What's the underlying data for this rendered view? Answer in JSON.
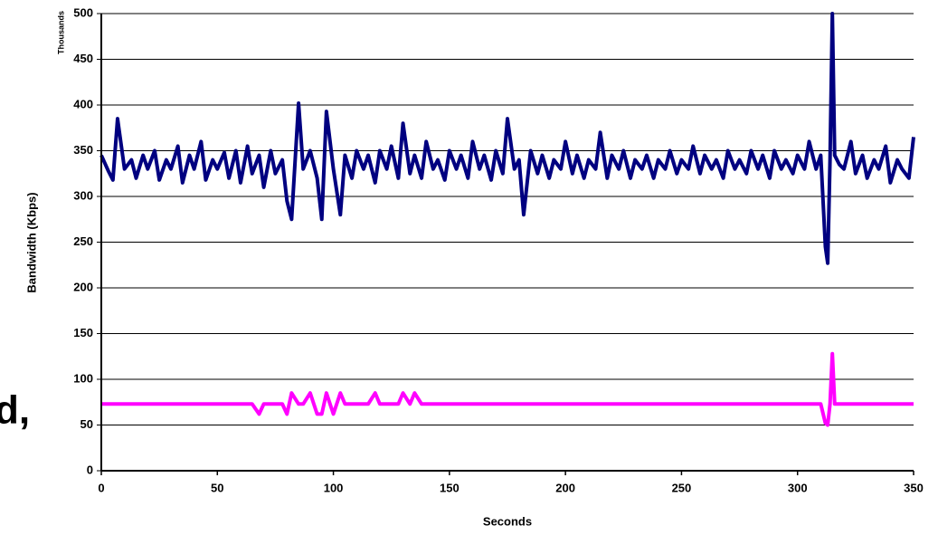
{
  "chart_data": {
    "type": "line",
    "background_text": "d,",
    "xlabel": "Seconds",
    "ylabel": "Bandwidth (Kbps)",
    "y_units_label": "Thousands",
    "xlim": [
      0,
      350
    ],
    "xticks": [
      0,
      50,
      100,
      150,
      200,
      250,
      300,
      350
    ],
    "ylim": [
      0,
      500
    ],
    "yticks": [
      0,
      50,
      100,
      150,
      200,
      250,
      300,
      350,
      400,
      450,
      500
    ],
    "grid": true,
    "x": [
      0,
      3,
      5,
      7,
      10,
      13,
      15,
      18,
      20,
      23,
      25,
      28,
      30,
      33,
      35,
      38,
      40,
      43,
      45,
      48,
      50,
      53,
      55,
      58,
      60,
      63,
      65,
      68,
      70,
      73,
      75,
      78,
      80,
      82,
      85,
      87,
      90,
      93,
      95,
      97,
      100,
      103,
      105,
      108,
      110,
      113,
      115,
      118,
      120,
      123,
      125,
      128,
      130,
      133,
      135,
      138,
      140,
      143,
      145,
      148,
      150,
      153,
      155,
      158,
      160,
      163,
      165,
      168,
      170,
      173,
      175,
      178,
      180,
      182,
      185,
      188,
      190,
      193,
      195,
      198,
      200,
      203,
      205,
      208,
      210,
      213,
      215,
      218,
      220,
      223,
      225,
      228,
      230,
      233,
      235,
      238,
      240,
      243,
      245,
      248,
      250,
      253,
      255,
      258,
      260,
      263,
      265,
      268,
      270,
      273,
      275,
      278,
      280,
      283,
      285,
      288,
      290,
      293,
      295,
      298,
      300,
      303,
      305,
      308,
      310,
      312,
      313,
      314,
      315,
      316,
      318,
      320,
      323,
      325,
      328,
      330,
      333,
      335,
      338,
      340,
      343,
      345,
      348,
      350
    ],
    "series": [
      {
        "color": "#000080",
        "values": [
          345,
          328,
          318,
          385,
          330,
          340,
          320,
          345,
          330,
          350,
          318,
          340,
          330,
          355,
          315,
          345,
          330,
          360,
          318,
          340,
          330,
          348,
          320,
          350,
          315,
          355,
          325,
          345,
          310,
          350,
          325,
          340,
          295,
          275,
          402,
          330,
          350,
          320,
          275,
          393,
          330,
          280,
          345,
          320,
          350,
          330,
          345,
          315,
          350,
          330,
          355,
          320,
          380,
          325,
          345,
          320,
          360,
          330,
          340,
          318,
          350,
          330,
          345,
          320,
          360,
          330,
          345,
          318,
          350,
          325,
          385,
          330,
          340,
          280,
          350,
          325,
          345,
          320,
          340,
          330,
          360,
          325,
          345,
          320,
          340,
          330,
          370,
          320,
          345,
          330,
          350,
          320,
          340,
          330,
          345,
          320,
          340,
          330,
          350,
          325,
          340,
          330,
          355,
          325,
          345,
          330,
          340,
          320,
          350,
          330,
          340,
          325,
          350,
          330,
          345,
          320,
          350,
          330,
          340,
          325,
          345,
          330,
          360,
          330,
          345,
          245,
          227,
          340,
          500,
          345,
          335,
          330,
          360,
          325,
          345,
          320,
          340,
          330,
          355,
          315,
          340,
          330,
          320,
          365
        ]
      },
      {
        "color": "#ff00ff",
        "values": [
          73,
          73,
          73,
          73,
          73,
          73,
          73,
          73,
          73,
          73,
          73,
          73,
          73,
          73,
          73,
          73,
          73,
          73,
          73,
          73,
          73,
          73,
          73,
          73,
          73,
          73,
          73,
          62,
          73,
          73,
          73,
          73,
          62,
          85,
          73,
          73,
          85,
          62,
          62,
          85,
          62,
          85,
          73,
          73,
          73,
          73,
          73,
          85,
          73,
          73,
          73,
          73,
          85,
          73,
          85,
          73,
          73,
          73,
          73,
          73,
          73,
          73,
          73,
          73,
          73,
          73,
          73,
          73,
          73,
          73,
          73,
          73,
          73,
          73,
          73,
          73,
          73,
          73,
          73,
          73,
          73,
          73,
          73,
          73,
          73,
          73,
          73,
          73,
          73,
          73,
          73,
          73,
          73,
          73,
          73,
          73,
          73,
          73,
          73,
          73,
          73,
          73,
          73,
          73,
          73,
          73,
          73,
          73,
          73,
          73,
          73,
          73,
          73,
          73,
          73,
          73,
          73,
          73,
          73,
          73,
          73,
          73,
          73,
          73,
          73,
          52,
          50,
          73,
          128,
          73,
          73,
          73,
          73,
          73,
          73,
          73,
          73,
          73,
          73,
          73,
          73,
          73,
          73,
          73
        ]
      }
    ]
  }
}
